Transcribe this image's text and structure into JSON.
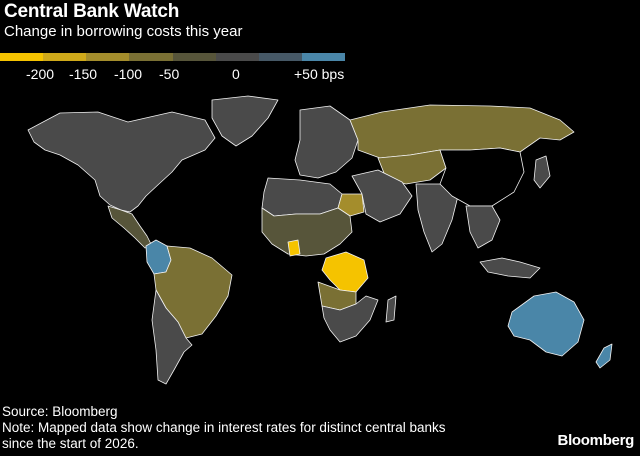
{
  "header": {
    "title": "Central Bank Watch",
    "subtitle": "Change in borrowing costs this year"
  },
  "legend": {
    "unit": "bps",
    "ticks": [
      "-200",
      "-150",
      "-100",
      "-50",
      "0",
      "+50 bps"
    ],
    "colors": [
      "#f5c300",
      "#cfa91a",
      "#a48d2c",
      "#7a7034",
      "#57553a",
      "#4a4a4a",
      "#465866",
      "#4a86a8"
    ]
  },
  "colors": {
    "background": "#000000",
    "land_no_data": "#4a4a4a",
    "border": "#f2f2f2",
    "cut_large": "#f5c300",
    "cut_medium": "#a48d2c",
    "cut_small": "#7a7034",
    "hike": "#4a86a8"
  },
  "map": {
    "regions": [
      {
        "name": "north-america",
        "color": "#4a4a4a"
      },
      {
        "name": "greenland",
        "color": "#4a4a4a"
      },
      {
        "name": "central-america",
        "color": "#57553a"
      },
      {
        "name": "colombia",
        "color": "#4a86a8"
      },
      {
        "name": "brazil",
        "color": "#7a7034"
      },
      {
        "name": "argentina",
        "color": "#4a4a4a"
      },
      {
        "name": "europe",
        "color": "#4a4a4a"
      },
      {
        "name": "russia",
        "color": "#7a7034"
      },
      {
        "name": "kazakhstan",
        "color": "#7a7034"
      },
      {
        "name": "north-africa",
        "color": "#4a4a4a"
      },
      {
        "name": "egypt",
        "color": "#a48d2c"
      },
      {
        "name": "west-africa",
        "color": "#57553a"
      },
      {
        "name": "ghana",
        "color": "#f5c300"
      },
      {
        "name": "dr-congo",
        "color": "#f5c300"
      },
      {
        "name": "angola",
        "color": "#7a7034"
      },
      {
        "name": "southern-africa",
        "color": "#4a4a4a"
      },
      {
        "name": "madagascar",
        "color": "#4a4a4a"
      },
      {
        "name": "middle-east",
        "color": "#4a4a4a"
      },
      {
        "name": "india",
        "color": "#4a4a4a"
      },
      {
        "name": "china",
        "color": "#000000"
      },
      {
        "name": "southeast-asia",
        "color": "#4a4a4a"
      },
      {
        "name": "japan",
        "color": "#4a4a4a"
      },
      {
        "name": "indonesia",
        "color": "#4a4a4a"
      },
      {
        "name": "australia",
        "color": "#4a86a8"
      },
      {
        "name": "new-zealand",
        "color": "#4a86a8"
      }
    ]
  },
  "footer": {
    "source": "Source: Bloomberg",
    "note_line1": "Note: Mapped data show change in interest rates for distinct central banks",
    "note_line2": "since the start of 2026."
  },
  "brand": {
    "logo_text": "Bloomberg"
  }
}
